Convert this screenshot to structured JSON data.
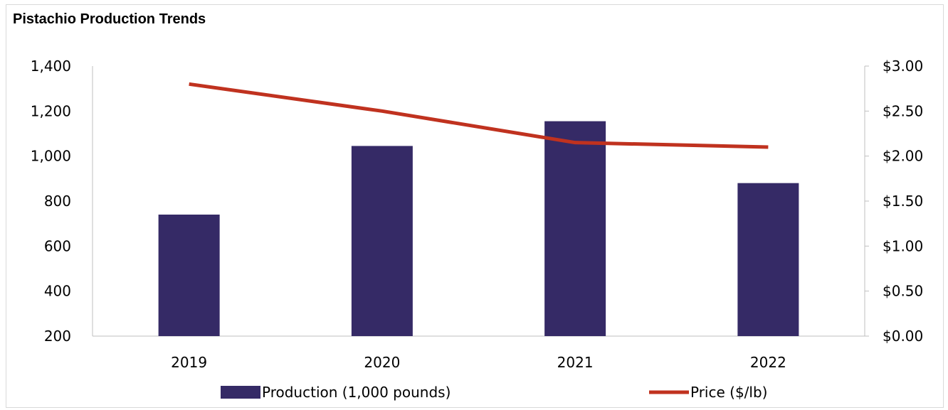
{
  "chart_data": {
    "type": "bar+line",
    "title": "Pistachio Production Trends",
    "categories": [
      "2019",
      "2020",
      "2021",
      "2022"
    ],
    "series": [
      {
        "name": "Production (1,000 pounds)",
        "type": "bar",
        "axis": "left",
        "color": "#352a66",
        "values": [
          740,
          1045,
          1155,
          880
        ]
      },
      {
        "name": "Price ($/lb)",
        "type": "line",
        "axis": "right",
        "color": "#c0321f",
        "values": [
          2.8,
          2.5,
          2.15,
          2.1
        ]
      }
    ],
    "y_left": {
      "ylim": [
        200,
        1400
      ],
      "ticks": [
        200,
        400,
        600,
        800,
        1000,
        1200,
        1400
      ],
      "tick_labels": [
        "200",
        "400",
        "600",
        "800",
        "1,000",
        "1,200",
        "1,400"
      ]
    },
    "y_right": {
      "ylim": [
        0,
        3
      ],
      "ticks": [
        0,
        0.5,
        1.0,
        1.5,
        2.0,
        2.5,
        3.0
      ],
      "tick_labels": [
        "$0.00",
        "$0.50",
        "$1.00",
        "$1.50",
        "$2.00",
        "$2.50",
        "$3.00"
      ]
    },
    "grid": false,
    "legend": "bottom"
  }
}
